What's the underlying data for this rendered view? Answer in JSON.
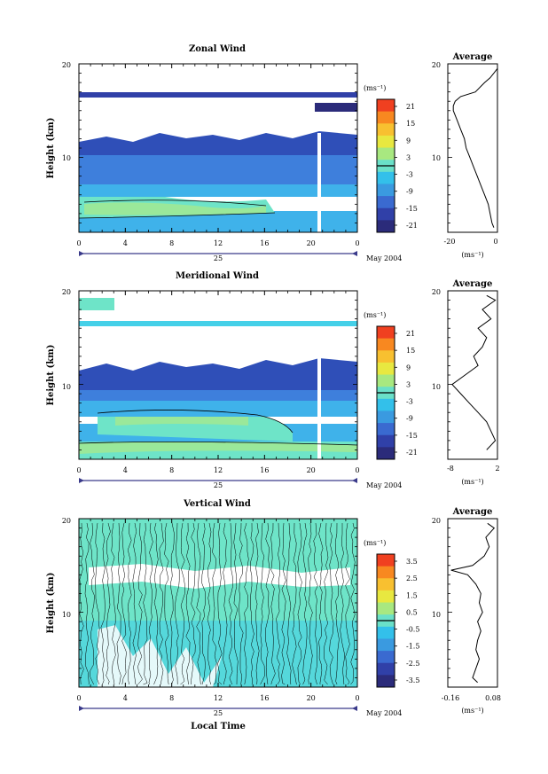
{
  "panels": [
    {
      "id": "zonal",
      "title": "Zonal Wind",
      "ylabel": "Height (km)",
      "y_ticks": [
        "20",
        "10"
      ],
      "x_ticks": [
        "0",
        "4",
        "8",
        "12",
        "16",
        "20",
        "0"
      ],
      "day_label": "25",
      "date_label": "May 2004",
      "unit_label": "(ms⁻¹)",
      "colorbar_labels": [
        "21",
        "15",
        "9",
        "3",
        "-3",
        "-9",
        "-15",
        "-21"
      ],
      "avg_title": "Average",
      "avg_x_ticks": [
        "-20",
        "0"
      ],
      "avg_y_ticks": [
        "20",
        "10"
      ],
      "avg_unit": "(ms⁻¹)"
    },
    {
      "id": "meridional",
      "title": "Meridional Wind",
      "ylabel": "Height (km)",
      "y_ticks": [
        "20",
        "10"
      ],
      "x_ticks": [
        "0",
        "4",
        "8",
        "12",
        "16",
        "20",
        "0"
      ],
      "day_label": "25",
      "date_label": "May 2004",
      "unit_label": "(ms⁻¹)",
      "colorbar_labels": [
        "21",
        "15",
        "9",
        "3",
        "-3",
        "-9",
        "-15",
        "-21"
      ],
      "avg_title": "Average",
      "avg_x_ticks": [
        "-8",
        "2"
      ],
      "avg_y_ticks": [
        "20",
        "10"
      ],
      "avg_unit": "(ms⁻¹)"
    },
    {
      "id": "vertical",
      "title": "Vertical Wind",
      "ylabel": "Height (km)",
      "y_ticks": [
        "20",
        "10"
      ],
      "x_ticks": [
        "0",
        "4",
        "8",
        "12",
        "16",
        "20",
        "0"
      ],
      "day_label": "25",
      "date_label": "May 2004",
      "unit_label": "(ms⁻¹)",
      "colorbar_labels": [
        "3.5",
        "2.5",
        "1.5",
        "0.5",
        "-0.5",
        "-1.5",
        "-2.5",
        "-3.5"
      ],
      "avg_title": "Average",
      "avg_x_ticks": [
        "-0.16",
        "0.08"
      ],
      "avg_y_ticks": [
        "20",
        "10"
      ],
      "avg_unit": "(ms⁻¹)"
    }
  ],
  "xlabel": "Local Time",
  "colors": {
    "colorbar": [
      "#2b2b7a",
      "#3040a8",
      "#3a6ad0",
      "#3a9ae0",
      "#33c0ea",
      "#6ae0c8",
      "#a8e880",
      "#e8e840",
      "#f8c030",
      "#f88820",
      "#f04020"
    ],
    "deep_blue": "#2f4fb8",
    "mid_blue": "#3e7fdc",
    "light_blue": "#3fb2ea",
    "cyan": "#45d0e8",
    "aqua": "#6ee4c8",
    "green": "#9ae89a"
  },
  "chart_data": [
    {
      "type": "heatmap",
      "title": "Zonal Wind",
      "xlabel": "Local Time",
      "ylabel": "Height (km)",
      "xlim": [
        0,
        24
      ],
      "ylim": [
        2,
        20
      ],
      "x_tick_values": [
        0,
        4,
        8,
        12,
        16,
        20,
        24
      ],
      "colorbar_range": [
        -21,
        21
      ],
      "average_profile": {
        "xlim": [
          -25,
          2
        ],
        "height": [
          2.5,
          3,
          4,
          5,
          6,
          7,
          8,
          9,
          10,
          11,
          12,
          13,
          14,
          15,
          15.5,
          16,
          16.5,
          17,
          18,
          18.5,
          19,
          19.5
        ],
        "values": [
          0,
          -1,
          -2,
          -3,
          -5,
          -7,
          -9,
          -11,
          -13,
          -15,
          -16,
          -18,
          -20,
          -22,
          -22,
          -21,
          -18,
          -10,
          -5,
          -2,
          0,
          2
        ]
      }
    },
    {
      "type": "heatmap",
      "title": "Meridional Wind",
      "xlabel": "Local Time",
      "ylabel": "Height (km)",
      "xlim": [
        0,
        24
      ],
      "ylim": [
        2,
        20
      ],
      "x_tick_values": [
        0,
        4,
        8,
        12,
        16,
        20,
        24
      ],
      "colorbar_range": [
        -21,
        21
      ],
      "average_profile": {
        "xlim": [
          -9,
          2.5
        ],
        "height": [
          3,
          3.5,
          4,
          5,
          6,
          7,
          8,
          9,
          10,
          11,
          12,
          13,
          14,
          15,
          16,
          17,
          18,
          19,
          19.5
        ],
        "values": [
          0,
          1,
          2,
          1,
          0,
          -2,
          -4,
          -6,
          -8,
          -5,
          -2,
          -3,
          -1,
          0,
          -2,
          1,
          -1,
          2,
          0
        ]
      }
    },
    {
      "type": "heatmap",
      "title": "Vertical Wind",
      "xlabel": "Local Time",
      "ylabel": "Height (km)",
      "xlim": [
        0,
        24
      ],
      "ylim": [
        2,
        20
      ],
      "x_tick_values": [
        0,
        4,
        8,
        12,
        16,
        20,
        24
      ],
      "colorbar_range": [
        -3.5,
        3.5
      ],
      "average_profile": {
        "xlim": [
          -0.2,
          0.1
        ],
        "height": [
          2.5,
          3,
          4,
          5,
          6,
          7,
          8,
          9,
          10,
          11,
          12,
          13,
          14,
          14.5,
          15,
          16,
          17,
          18,
          19,
          19.5
        ],
        "values": [
          -0.02,
          -0.05,
          -0.03,
          -0.01,
          -0.03,
          -0.02,
          0,
          -0.02,
          0.01,
          -0.01,
          0,
          -0.03,
          -0.08,
          -0.18,
          -0.05,
          0.02,
          0.05,
          0.03,
          0.08,
          0.04
        ]
      }
    }
  ]
}
